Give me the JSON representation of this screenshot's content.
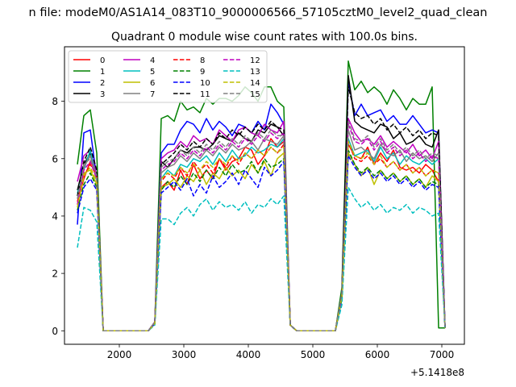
{
  "suptitle": "n file: modeM0/AS1A14_083T10_9000006566_57105cztM0_level2_quad_clean",
  "chart_data": {
    "type": "line",
    "title": "Quadrant 0 module wise count rates with 100.0s bins.",
    "xlabel": "",
    "ylabel": "",
    "x_offset_label": "+5.1418e8",
    "xlim": [
      1150,
      7350
    ],
    "ylim": [
      -0.47,
      9.9
    ],
    "xticks": [
      2000,
      3000,
      4000,
      5000,
      6000,
      7000
    ],
    "xtick_labels": [
      "2000",
      "3000",
      "4000",
      "5000",
      "6000",
      "7000"
    ],
    "yticks": [
      0,
      2,
      4,
      6,
      8
    ],
    "ytick_labels": [
      "0",
      "2",
      "4",
      "6",
      "8"
    ],
    "grid": false,
    "legend_position": "top-left",
    "x": [
      1350,
      1450,
      1550,
      1650,
      1750,
      1850,
      1950,
      2050,
      2150,
      2250,
      2350,
      2450,
      2550,
      2650,
      2750,
      2850,
      2950,
      3050,
      3150,
      3250,
      3350,
      3450,
      3550,
      3650,
      3750,
      3850,
      3950,
      4050,
      4150,
      4250,
      4350,
      4450,
      4550,
      4650,
      4750,
      4850,
      4950,
      5050,
      5150,
      5250,
      5350,
      5450,
      5550,
      5650,
      5750,
      5850,
      5950,
      6050,
      6150,
      6250,
      6350,
      6450,
      6550,
      6650,
      6750,
      6850,
      6950,
      7050
    ],
    "series": [
      {
        "name": "0",
        "color": "#ff0000",
        "dash": "solid",
        "values": [
          4.4,
          5.3,
          5.9,
          5.5,
          0,
          0,
          0,
          0,
          0,
          0,
          0,
          0,
          0.25,
          5.0,
          5.2,
          4.9,
          5.6,
          5.1,
          5.8,
          5.3,
          5.6,
          5.3,
          6.0,
          5.6,
          5.9,
          6.0,
          6.4,
          6.3,
          5.8,
          6.1,
          6.7,
          6.4,
          6.6,
          0.2,
          0,
          0,
          0,
          0,
          0,
          0,
          0,
          1.2,
          6.5,
          6.1,
          6.0,
          6.4,
          5.8,
          6.2,
          5.9,
          6.3,
          5.7,
          5.6,
          5.7,
          5.5,
          5.8,
          5.6,
          5.2,
          0.1
        ]
      },
      {
        "name": "1",
        "color": "#008000",
        "dash": "solid",
        "values": [
          5.8,
          7.5,
          7.7,
          6.2,
          0,
          0,
          0,
          0,
          0,
          0,
          0,
          0,
          0.3,
          7.4,
          7.5,
          7.3,
          8.0,
          7.7,
          7.8,
          7.6,
          8.1,
          7.9,
          8.1,
          8.1,
          8.0,
          8.2,
          8.5,
          8.3,
          8.0,
          8.5,
          8.5,
          8.0,
          7.8,
          0.2,
          0,
          0,
          0,
          0,
          0,
          0,
          0,
          1.5,
          9.4,
          8.4,
          8.7,
          8.3,
          8.5,
          8.3,
          7.9,
          8.4,
          8.1,
          7.7,
          8.1,
          7.9,
          7.9,
          8.5,
          0.1,
          0.1
        ]
      },
      {
        "name": "2",
        "color": "#0000ff",
        "dash": "solid",
        "values": [
          3.7,
          6.9,
          7.0,
          5.3,
          0,
          0,
          0,
          0,
          0,
          0,
          0,
          0,
          0.3,
          6.2,
          6.5,
          6.5,
          7.0,
          7.3,
          7.2,
          6.9,
          7.4,
          7.0,
          7.3,
          7.1,
          6.8,
          7.2,
          7.1,
          6.9,
          7.3,
          7.0,
          7.9,
          7.6,
          7.2,
          0.2,
          0,
          0,
          0,
          0,
          0,
          0,
          0,
          1.3,
          8.7,
          7.5,
          7.9,
          7.5,
          7.6,
          7.7,
          7.3,
          7.5,
          7.2,
          7.2,
          7.5,
          7.2,
          6.9,
          7.0,
          6.9,
          0.1
        ]
      },
      {
        "name": "3",
        "color": "#000000",
        "dash": "solid",
        "values": [
          4.9,
          5.8,
          6.2,
          5.3,
          0,
          0,
          0,
          0,
          0,
          0,
          0,
          0,
          0.3,
          5.9,
          5.7,
          6.0,
          6.3,
          6.2,
          6.4,
          6.4,
          6.3,
          6.5,
          6.8,
          6.7,
          6.6,
          6.9,
          6.7,
          6.6,
          7.0,
          6.9,
          7.2,
          7.1,
          6.8,
          0.2,
          0,
          0,
          0,
          0,
          0,
          0,
          0,
          1.3,
          8.9,
          7.3,
          7.1,
          7.0,
          6.9,
          7.2,
          7.1,
          6.7,
          6.9,
          6.5,
          6.6,
          6.8,
          6.5,
          6.4,
          7.0,
          0.1
        ]
      },
      {
        "name": "4",
        "color": "#bf00bf",
        "dash": "solid",
        "values": [
          5.2,
          6.1,
          6.3,
          5.4,
          0,
          0,
          0,
          0,
          0,
          0,
          0,
          0,
          0.3,
          6.0,
          6.2,
          6.3,
          6.6,
          6.4,
          6.8,
          6.6,
          6.7,
          6.5,
          7.0,
          6.8,
          6.6,
          7.0,
          7.1,
          6.9,
          6.8,
          7.2,
          7.0,
          6.9,
          7.3,
          0.2,
          0,
          0,
          0,
          0,
          0,
          0,
          0,
          1.2,
          7.4,
          6.9,
          6.6,
          6.7,
          6.5,
          6.8,
          6.4,
          6.6,
          6.4,
          6.2,
          6.5,
          6.1,
          6.3,
          6.0,
          6.6,
          0.1
        ]
      },
      {
        "name": "5",
        "color": "#00bfbf",
        "dash": "solid",
        "values": [
          4.8,
          5.6,
          6.3,
          5.2,
          0,
          0,
          0,
          0,
          0,
          0,
          0,
          0,
          0.25,
          5.3,
          5.6,
          5.4,
          5.8,
          5.7,
          6.0,
          5.9,
          6.1,
          5.8,
          6.2,
          5.9,
          6.3,
          6.0,
          6.1,
          6.4,
          6.2,
          6.3,
          6.5,
          6.4,
          6.7,
          0.2,
          0,
          0,
          0,
          0,
          0,
          0,
          0,
          1.2,
          6.7,
          6.1,
          6.2,
          6.3,
          5.9,
          6.4,
          6.0,
          6.2,
          5.8,
          6.1,
          5.9,
          5.8,
          6.0,
          5.8,
          6.0,
          0.1
        ]
      },
      {
        "name": "6",
        "color": "#bfbf00",
        "dash": "solid",
        "values": [
          4.3,
          5.5,
          5.6,
          5.1,
          0,
          0,
          0,
          0,
          0,
          0,
          0,
          0,
          0.25,
          5.0,
          5.1,
          5.3,
          5.0,
          5.4,
          5.2,
          5.6,
          5.1,
          5.5,
          5.3,
          5.7,
          5.4,
          5.6,
          5.3,
          5.8,
          5.5,
          5.9,
          5.4,
          6.0,
          6.2,
          0.2,
          0,
          0,
          0,
          0,
          0,
          0,
          0,
          1.2,
          6.2,
          5.8,
          5.4,
          5.7,
          5.1,
          5.6,
          5.3,
          5.5,
          5.2,
          5.4,
          5.1,
          5.3,
          5.0,
          5.4,
          5.2,
          0.1
        ]
      },
      {
        "name": "7",
        "color": "#808080",
        "dash": "solid",
        "values": [
          4.6,
          5.7,
          6.1,
          5.3,
          0,
          0,
          0,
          0,
          0,
          0,
          0,
          0,
          0.3,
          5.5,
          5.7,
          5.8,
          6.1,
          5.9,
          6.2,
          6.0,
          6.3,
          6.1,
          6.4,
          6.2,
          6.5,
          6.3,
          6.4,
          6.6,
          6.3,
          6.7,
          6.6,
          6.5,
          6.8,
          0.2,
          0,
          0,
          0,
          0,
          0,
          0,
          0,
          1.3,
          7.0,
          6.3,
          6.4,
          6.2,
          6.0,
          6.5,
          6.2,
          6.1,
          6.3,
          5.9,
          6.2,
          6.0,
          6.1,
          5.9,
          6.2,
          0.1
        ]
      },
      {
        "name": "8",
        "color": "#ff0000",
        "dash": "dashed",
        "values": [
          4.5,
          5.4,
          5.8,
          5.4,
          0,
          0,
          0,
          0,
          0,
          0,
          0,
          0,
          0.25,
          5.2,
          5.5,
          5.3,
          5.7,
          5.4,
          5.9,
          5.6,
          5.8,
          5.5,
          6.0,
          5.7,
          6.1,
          5.8,
          6.2,
          6.0,
          6.3,
          6.1,
          6.4,
          6.2,
          6.5,
          0.2,
          0,
          0,
          0,
          0,
          0,
          0,
          0,
          1.2,
          6.6,
          6.0,
          5.9,
          6.1,
          5.8,
          6.0,
          5.7,
          5.9,
          5.6,
          5.8,
          5.5,
          5.7,
          5.4,
          5.6,
          5.5,
          0.1
        ]
      },
      {
        "name": "9",
        "color": "#008000",
        "dash": "dashed",
        "values": [
          4.2,
          5.1,
          5.5,
          5.0,
          0,
          0,
          0,
          0,
          0,
          0,
          0,
          0,
          0.25,
          4.9,
          5.2,
          5.0,
          5.4,
          5.1,
          5.5,
          5.2,
          5.6,
          5.3,
          5.7,
          5.4,
          5.8,
          5.5,
          5.6,
          5.9,
          5.5,
          6.0,
          5.7,
          5.8,
          6.0,
          0.2,
          0,
          0,
          0,
          0,
          0,
          0,
          0,
          1.1,
          6.3,
          5.8,
          5.5,
          5.7,
          5.4,
          5.6,
          5.3,
          5.5,
          5.2,
          5.4,
          5.1,
          5.3,
          5.0,
          5.2,
          5.1,
          0.1
        ]
      },
      {
        "name": "10",
        "color": "#0000ff",
        "dash": "dashed",
        "values": [
          4.1,
          5.0,
          5.3,
          4.9,
          0,
          0,
          0,
          0,
          0,
          0,
          0,
          0,
          0.25,
          4.8,
          5.0,
          5.2,
          4.9,
          5.3,
          4.7,
          5.1,
          4.8,
          5.4,
          5.0,
          5.2,
          5.5,
          5.1,
          5.6,
          5.3,
          5.0,
          5.7,
          5.4,
          5.6,
          5.9,
          0.2,
          0,
          0,
          0,
          0,
          0,
          0,
          0,
          1.1,
          6.1,
          5.7,
          5.4,
          5.6,
          5.3,
          5.5,
          5.2,
          5.4,
          5.1,
          5.3,
          5.0,
          5.2,
          4.9,
          5.1,
          5.0,
          0.1
        ]
      },
      {
        "name": "11",
        "color": "#000000",
        "dash": "dashed",
        "values": [
          4.7,
          5.9,
          6.4,
          5.6,
          0,
          0,
          0,
          0,
          0,
          0,
          0,
          0,
          0.3,
          5.8,
          6.0,
          6.2,
          6.5,
          6.3,
          6.6,
          6.4,
          6.7,
          6.5,
          6.9,
          6.7,
          7.0,
          6.8,
          7.1,
          6.9,
          7.2,
          7.0,
          7.3,
          7.1,
          7.0,
          0.2,
          0,
          0,
          0,
          0,
          0,
          0,
          0,
          1.3,
          8.5,
          7.6,
          7.4,
          7.5,
          7.2,
          7.4,
          7.0,
          7.2,
          6.9,
          7.1,
          6.8,
          7.0,
          6.7,
          6.9,
          6.8,
          0.1
        ]
      },
      {
        "name": "12",
        "color": "#bf00bf",
        "dash": "dashed",
        "values": [
          4.4,
          5.6,
          5.9,
          5.3,
          0,
          0,
          0,
          0,
          0,
          0,
          0,
          0,
          0.3,
          5.6,
          5.8,
          5.9,
          6.2,
          6.0,
          6.3,
          6.1,
          6.4,
          6.2,
          6.5,
          6.3,
          6.6,
          6.4,
          6.7,
          6.5,
          6.8,
          6.6,
          6.9,
          6.7,
          6.9,
          0.2,
          0,
          0,
          0,
          0,
          0,
          0,
          0,
          1.2,
          7.2,
          6.6,
          6.5,
          6.7,
          6.3,
          6.6,
          6.2,
          6.4,
          6.1,
          6.3,
          6.0,
          6.2,
          5.9,
          6.1,
          6.0,
          0.1
        ]
      },
      {
        "name": "13",
        "color": "#00bfbf",
        "dash": "dashed",
        "values": [
          2.9,
          4.3,
          4.2,
          3.8,
          0,
          0,
          0,
          0,
          0,
          0,
          0,
          0,
          0.2,
          3.9,
          3.9,
          3.7,
          4.1,
          4.3,
          4.0,
          4.4,
          4.6,
          4.2,
          4.5,
          4.3,
          4.4,
          4.2,
          4.5,
          4.1,
          4.4,
          4.3,
          4.6,
          4.4,
          4.7,
          0.2,
          0,
          0,
          0,
          0,
          0,
          0,
          0,
          0.9,
          5.0,
          4.6,
          4.3,
          4.5,
          4.2,
          4.4,
          4.1,
          4.3,
          4.2,
          4.4,
          4.1,
          4.3,
          4.2,
          4.0,
          4.1,
          0.1
        ]
      },
      {
        "name": "14",
        "color": "#bfbf00",
        "dash": "dashed",
        "values": [
          4.3,
          5.4,
          5.7,
          5.2,
          0,
          0,
          0,
          0,
          0,
          0,
          0,
          0,
          0.25,
          5.3,
          5.5,
          5.4,
          5.7,
          5.5,
          5.8,
          5.6,
          5.9,
          5.7,
          6.0,
          5.8,
          6.1,
          5.9,
          6.2,
          6.0,
          6.3,
          6.1,
          6.4,
          6.2,
          6.4,
          0.2,
          0,
          0,
          0,
          0,
          0,
          0,
          0,
          1.2,
          6.6,
          6.1,
          6.0,
          6.2,
          5.8,
          6.1,
          5.7,
          5.9,
          5.6,
          5.8,
          5.5,
          5.7,
          5.4,
          5.6,
          5.5,
          0.1
        ]
      },
      {
        "name": "15",
        "color": "#808080",
        "dash": "dashed",
        "values": [
          4.6,
          5.8,
          6.0,
          5.4,
          0,
          0,
          0,
          0,
          0,
          0,
          0,
          0,
          0.3,
          5.7,
          5.9,
          6.0,
          6.3,
          6.1,
          6.4,
          6.2,
          6.5,
          6.3,
          6.6,
          6.4,
          6.7,
          6.5,
          6.8,
          6.6,
          6.9,
          6.7,
          7.0,
          6.8,
          6.8,
          0.2,
          0,
          0,
          0,
          0,
          0,
          0,
          0,
          1.3,
          7.3,
          6.7,
          6.6,
          6.8,
          6.4,
          6.7,
          6.3,
          6.5,
          6.2,
          6.4,
          6.1,
          6.3,
          6.0,
          6.2,
          6.1,
          0.1
        ]
      }
    ]
  }
}
